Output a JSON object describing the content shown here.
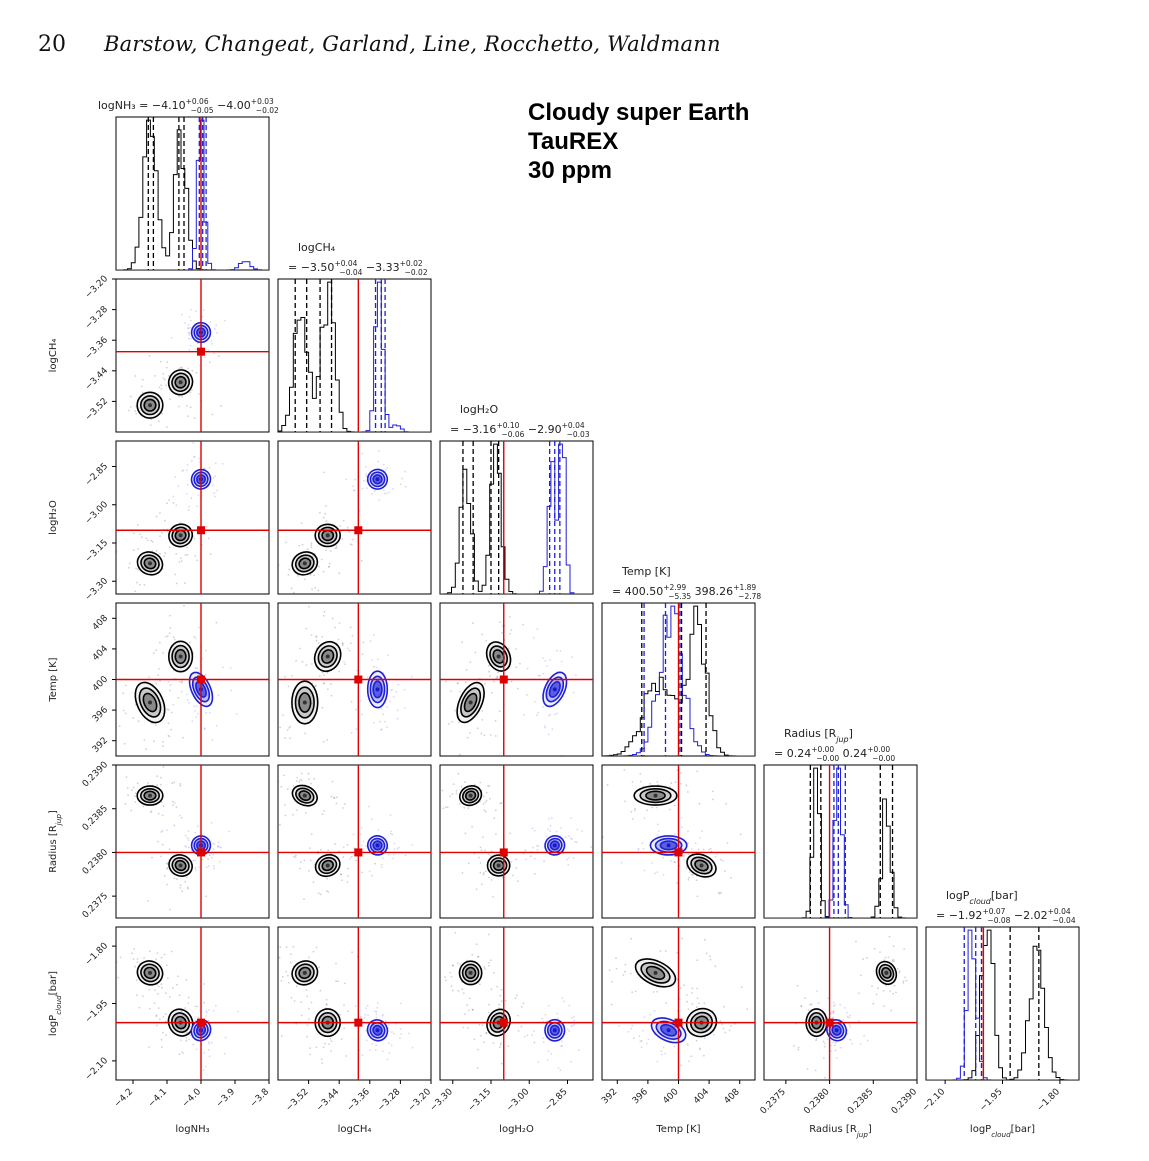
{
  "header": {
    "page_number": "20",
    "authors": "Barstow, Changeat, Garland, Line, Rocchetto, Waldmann"
  },
  "figure": {
    "title_lines": [
      "Cloudy super Earth",
      "TauREX",
      "30 ppm"
    ]
  },
  "chart_data": {
    "type": "corner",
    "parameters": [
      {
        "key": "nh3",
        "label": "logNH₃",
        "range": [
          -4.25,
          -3.8
        ],
        "ticks": [
          -4.2,
          -4.1,
          -4.0,
          -3.9,
          -3.8
        ],
        "tick_labels": [
          "−4.2",
          "−4.1",
          "−4.0",
          "−3.9",
          "−3.8"
        ],
        "truth": -4.0,
        "summary": {
          "lead": "logNH₃ = ",
          "black": "−4.10",
          "black_up": "+0.06",
          "black_dn": "−0.05",
          "blue": "−4.00",
          "blue_up": "+0.03",
          "blue_dn": "−0.02"
        },
        "black_modes": [
          {
            "mean": -4.15,
            "sd": 0.02,
            "w": 0.55
          },
          {
            "mean": -4.06,
            "sd": 0.017,
            "w": 0.45
          }
        ],
        "blue_modes": [
          {
            "mean": -4.0,
            "sd": 0.01,
            "w": 0.92
          },
          {
            "mean": -3.87,
            "sd": 0.015,
            "w": 0.08
          }
        ],
        "black_quantiles": [
          -4.155,
          -4.14,
          -4.065,
          -4.05
        ],
        "blue_quantiles": [
          -4.005,
          -3.995,
          -3.985
        ]
      },
      {
        "key": "ch4",
        "label": "logCH₄",
        "range": [
          -3.6,
          -3.2
        ],
        "ticks": [
          -3.52,
          -3.44,
          -3.36,
          -3.28,
          -3.2
        ],
        "tick_labels": [
          "−3.52",
          "−3.44",
          "−3.36",
          "−3.28",
          "−3.20"
        ],
        "truth": -3.39,
        "summary": {
          "lead": "= ",
          "black": "−3.50",
          "black_up": "+0.04",
          "black_dn": "−0.04",
          "blue": "−3.33",
          "blue_up": "+0.02",
          "blue_dn": "−0.02",
          "label": "logCH₄"
        },
        "black_modes": [
          {
            "mean": -3.54,
            "sd": 0.018,
            "w": 0.5
          },
          {
            "mean": -3.47,
            "sd": 0.017,
            "w": 0.5
          }
        ],
        "blue_modes": [
          {
            "mean": -3.335,
            "sd": 0.01,
            "w": 0.95
          },
          {
            "mean": -3.29,
            "sd": 0.01,
            "w": 0.05
          }
        ],
        "black_quantiles": [
          -3.555,
          -3.525,
          -3.49,
          -3.46
        ],
        "blue_quantiles": [
          -3.345,
          -3.33,
          -3.32
        ]
      },
      {
        "key": "h2o",
        "label": "logH₂O",
        "range": [
          -3.35,
          -2.75
        ],
        "ticks": [
          -3.3,
          -3.15,
          -3.0,
          -2.85
        ],
        "tick_labels": [
          "−3.30",
          "−3.15",
          "−3.00",
          "−2.85"
        ],
        "truth": -3.1,
        "summary": {
          "lead": "= ",
          "black": "−3.16",
          "black_up": "+0.10",
          "black_dn": "−0.06",
          "blue": "−2.90",
          "blue_up": "+0.04",
          "blue_dn": "−0.03",
          "label": "logH₂O"
        },
        "black_modes": [
          {
            "mean": -3.25,
            "sd": 0.02,
            "w": 0.5
          },
          {
            "mean": -3.13,
            "sd": 0.02,
            "w": 0.5
          }
        ],
        "blue_modes": [
          {
            "mean": -2.91,
            "sd": 0.015,
            "w": 0.5
          },
          {
            "mean": -2.87,
            "sd": 0.012,
            "w": 0.5
          }
        ],
        "black_quantiles": [
          -3.26,
          -3.22,
          -3.15,
          -3.12
        ],
        "blue_quantiles": [
          -2.92,
          -2.9,
          -2.88
        ]
      },
      {
        "key": "temp",
        "label": "Temp [K]",
        "range": [
          390,
          410
        ],
        "ticks": [
          392,
          396,
          400,
          404,
          408
        ],
        "tick_labels": [
          "392",
          "396",
          "400",
          "404",
          "408"
        ],
        "truth": 400,
        "summary": {
          "lead": "= ",
          "black": "400.50",
          "black_up": "+2.99",
          "black_dn": "−5.35",
          "blue": "398.26",
          "blue_up": "+1.89",
          "blue_dn": "−2.78",
          "label": "Temp [K]"
        },
        "black_modes": [
          {
            "mean": 397.5,
            "sd": 2.0,
            "w": 0.5
          },
          {
            "mean": 402.5,
            "sd": 1.2,
            "w": 0.5
          }
        ],
        "blue_modes": [
          {
            "mean": 399.0,
            "sd": 1.6,
            "w": 1.0
          }
        ],
        "black_quantiles": [
          395.2,
          400.4,
          403.6
        ],
        "blue_quantiles": [
          395.5,
          398.3,
          400.2
        ]
      },
      {
        "key": "radius",
        "label": "Radius [R_jup]",
        "range": [
          0.23725,
          0.239
        ],
        "ticks": [
          0.2375,
          0.238,
          0.2385,
          0.239
        ],
        "tick_labels": [
          "0.2375",
          "0.2380",
          "0.2385",
          "0.2390"
        ],
        "truth": 0.238,
        "summary": {
          "lead": "= ",
          "black": "0.24",
          "black_up": "+0.00",
          "black_dn": "−0.00",
          "blue": "0.24",
          "blue_up": "+0.00",
          "blue_dn": "−0.00",
          "label": "Radius [R_jup]"
        },
        "black_modes": [
          {
            "mean": 0.23785,
            "sd": 4e-05,
            "w": 0.5
          },
          {
            "mean": 0.23865,
            "sd": 5e-05,
            "w": 0.5
          }
        ],
        "blue_modes": [
          {
            "mean": 0.2381,
            "sd": 4e-05,
            "w": 1.0
          }
        ],
        "black_quantiles": [
          0.23778,
          0.2379,
          0.23858,
          0.23872
        ],
        "blue_quantiles": [
          0.23805,
          0.2381,
          0.23818
        ]
      },
      {
        "key": "pcloud",
        "label": "logP_cloud[bar]",
        "range": [
          -2.15,
          -1.75
        ],
        "ticks": [
          -2.1,
          -1.95,
          -1.8
        ],
        "tick_labels": [
          "−2.10",
          "−1.95",
          "−1.80"
        ],
        "truth": -2.0,
        "summary": {
          "lead": "= ",
          "black": "−1.92",
          "black_up": "+0.07",
          "black_dn": "−0.08",
          "blue": "−2.02",
          "blue_up": "+0.04",
          "blue_dn": "−0.04",
          "label": "logP_cloud[bar]"
        },
        "black_modes": [
          {
            "mean": -1.99,
            "sd": 0.015,
            "w": 0.5
          },
          {
            "mean": -1.86,
            "sd": 0.02,
            "w": 0.5
          }
        ],
        "blue_modes": [
          {
            "mean": -2.03,
            "sd": 0.012,
            "w": 1.0
          }
        ],
        "black_quantiles": [
          -2.0,
          -1.93,
          -1.855
        ],
        "blue_quantiles": [
          -2.05,
          -2.02,
          -2.005
        ]
      }
    ],
    "series": [
      {
        "color": "#000000",
        "modes": [
          {
            "nh3": -4.15,
            "ch4": -3.53,
            "h2o": -3.23,
            "temp": 397.0,
            "radius": 0.23865,
            "pcloud": -1.87
          },
          {
            "nh3": -4.06,
            "ch4": -3.47,
            "h2o": -3.12,
            "temp": 403.0,
            "radius": 0.23785,
            "pcloud": -2.0
          }
        ]
      },
      {
        "color": "#1f1fd6",
        "modes": [
          {
            "nh3": -4.0,
            "ch4": -3.34,
            "h2o": -2.9,
            "temp": 398.7,
            "radius": 0.23808,
            "pcloud": -2.02
          }
        ]
      }
    ],
    "truth_color": "#e00000"
  }
}
